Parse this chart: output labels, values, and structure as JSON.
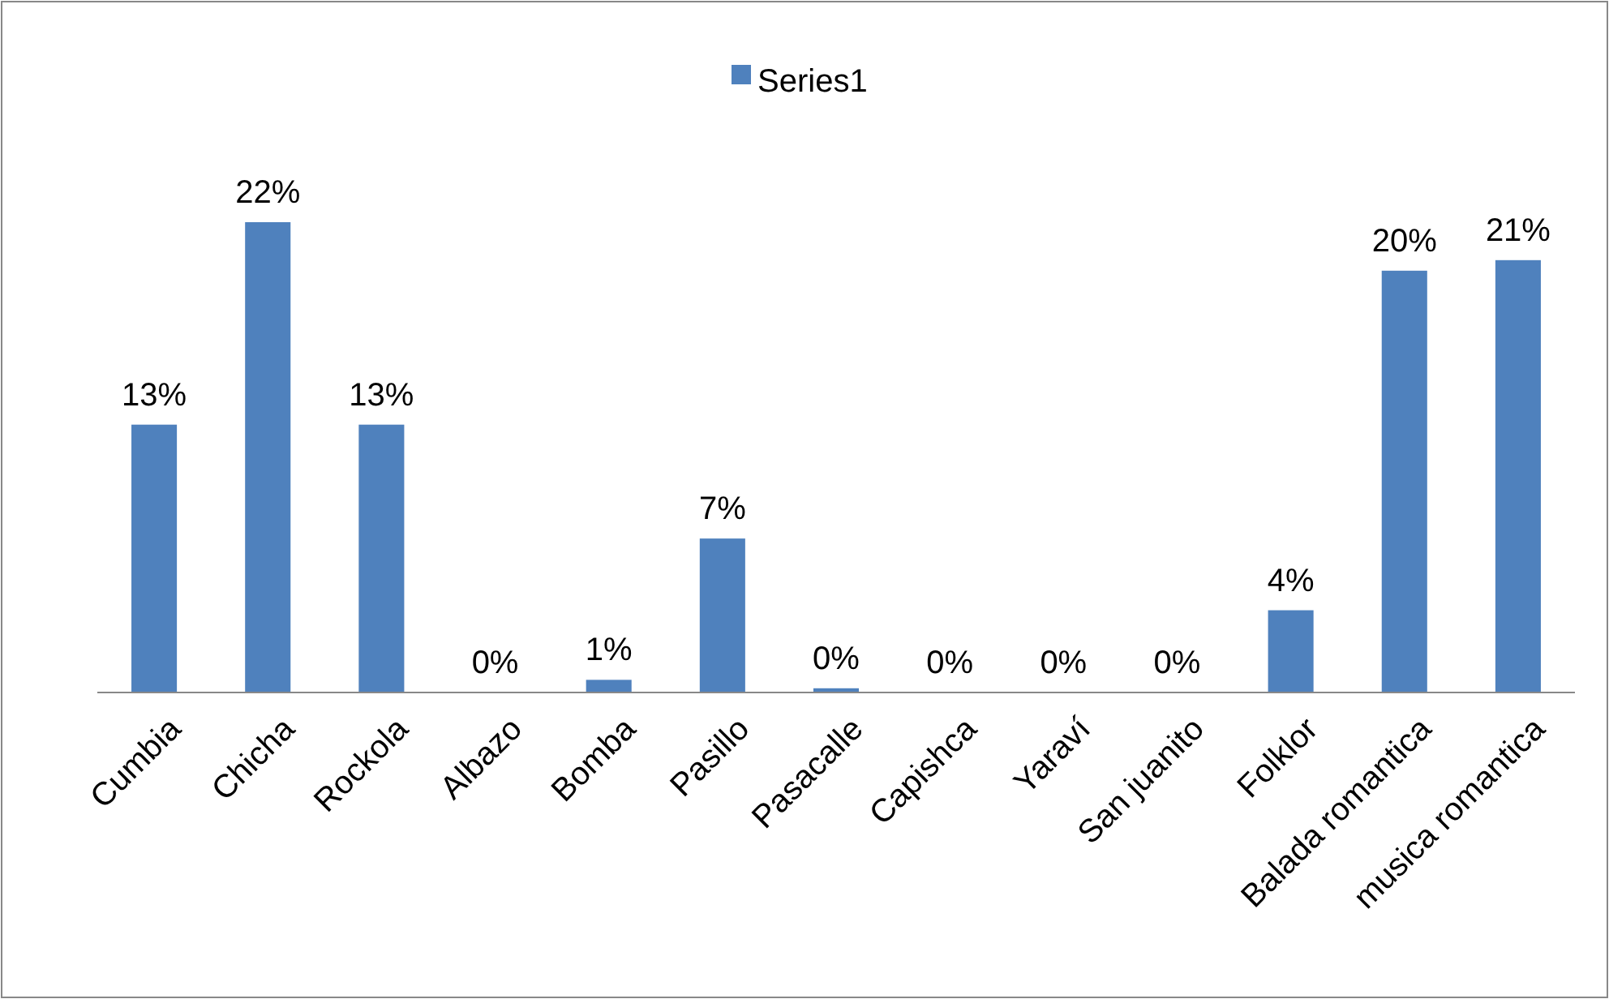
{
  "chart_data": {
    "type": "bar",
    "categories": [
      "Cumbia",
      "Chicha",
      "Rockola",
      "Albazo",
      "Bomba",
      "Pasillo",
      "Pasacalle",
      "Capishca",
      "Yaraví",
      "San juanito",
      "Folklor",
      "Balada romantica",
      "musica romantica"
    ],
    "series": [
      {
        "name": "Series1",
        "color": "#4f81bd",
        "values": [
          12.7,
          22.3,
          12.7,
          0,
          0.6,
          7.3,
          0.2,
          0,
          0,
          0,
          3.9,
          20,
          20.5
        ],
        "value_labels": [
          "13%",
          "22%",
          "13%",
          "0%",
          "1%",
          "7%",
          "0%",
          "0%",
          "0%",
          "0%",
          "4%",
          "20%",
          "21%"
        ]
      }
    ],
    "tick_labels": "x",
    "legend": "top",
    "grid": false
  }
}
